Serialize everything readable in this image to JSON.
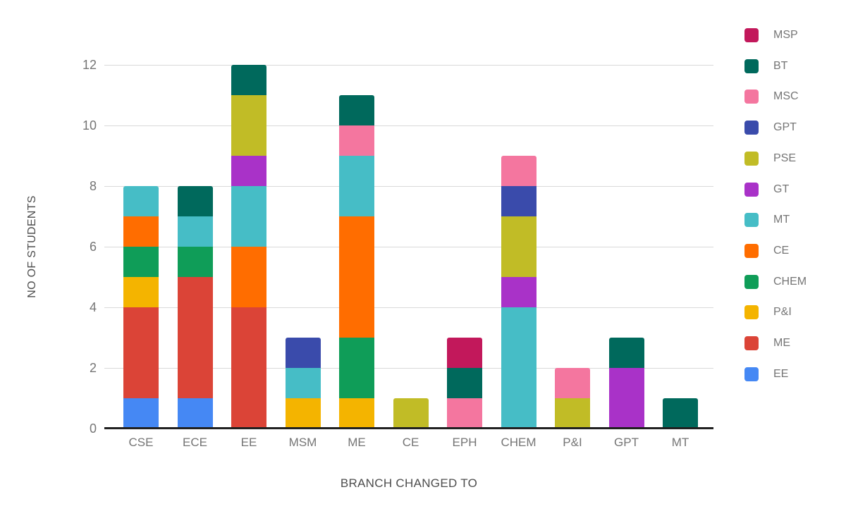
{
  "chart_data": {
    "type": "bar",
    "stacked": true,
    "title": "",
    "xlabel": "BRANCH CHANGED TO",
    "ylabel": "NO OF STUDENTS",
    "categories": [
      "CSE",
      "ECE",
      "EE",
      "MSM",
      "ME",
      "CE",
      "EPH",
      "CHEM",
      "P&I",
      "GPT",
      "MT"
    ],
    "yticks": [
      0,
      2,
      4,
      6,
      8,
      10,
      12
    ],
    "ylim": [
      0,
      12
    ],
    "grid": true,
    "legend_position": "right",
    "legend_order_top_to_bottom": [
      "MSP",
      "BT",
      "MSC",
      "GPT",
      "PSE",
      "GT",
      "MT",
      "CE",
      "CHEM",
      "P&I",
      "ME",
      "EE"
    ],
    "series": [
      {
        "name": "EE",
        "color": "#4588f4",
        "values": [
          1,
          1,
          0,
          0,
          0,
          0,
          0,
          0,
          0,
          0,
          0
        ]
      },
      {
        "name": "ME",
        "color": "#db4437",
        "values": [
          3,
          4,
          4,
          0,
          0,
          0,
          0,
          0,
          0,
          0,
          0
        ]
      },
      {
        "name": "P&I",
        "color": "#f4b400",
        "values": [
          1,
          0,
          0,
          1,
          1,
          0,
          0,
          0,
          0,
          0,
          0
        ]
      },
      {
        "name": "CHEM",
        "color": "#0f9d58",
        "values": [
          1,
          1,
          0,
          0,
          2,
          0,
          0,
          0,
          0,
          0,
          0
        ]
      },
      {
        "name": "CE",
        "color": "#ff6d00",
        "values": [
          1,
          0,
          2,
          0,
          4,
          0,
          0,
          0,
          0,
          0,
          0
        ]
      },
      {
        "name": "MT",
        "color": "#46bdc6",
        "values": [
          1,
          1,
          2,
          1,
          2,
          0,
          0,
          4,
          0,
          0,
          0
        ]
      },
      {
        "name": "GT",
        "color": "#a932c8",
        "values": [
          0,
          0,
          1,
          0,
          0,
          0,
          0,
          1,
          0,
          2,
          0
        ]
      },
      {
        "name": "PSE",
        "color": "#c1bc26",
        "values": [
          0,
          0,
          2,
          0,
          0,
          1,
          0,
          2,
          1,
          0,
          0
        ]
      },
      {
        "name": "GPT",
        "color": "#3a4bab",
        "values": [
          0,
          0,
          0,
          1,
          0,
          0,
          0,
          1,
          0,
          0,
          0
        ]
      },
      {
        "name": "MSC",
        "color": "#f4769f",
        "values": [
          0,
          0,
          0,
          0,
          1,
          0,
          1,
          1,
          1,
          0,
          0
        ]
      },
      {
        "name": "BT",
        "color": "#00695c",
        "values": [
          0,
          1,
          1,
          0,
          1,
          0,
          1,
          0,
          0,
          1,
          1
        ]
      },
      {
        "name": "MSP",
        "color": "#c2185b",
        "values": [
          0,
          0,
          0,
          0,
          0,
          0,
          1,
          0,
          0,
          0,
          0
        ]
      }
    ],
    "bar_totals": {
      "CSE": 8,
      "ECE": 8,
      "EE": 12,
      "MSM": 3,
      "ME": 11,
      "CE": 1,
      "EPH": 3,
      "CHEM": 9,
      "P&I": 2,
      "GPT": 3,
      "MT": 1
    }
  },
  "colors": {
    "background": "#ffffff",
    "gridline": "#d9d9d9",
    "baseline": "#212121",
    "tick_text": "#757575",
    "axis_title_text": "#4d4d4d",
    "legend_text": "#757575"
  }
}
